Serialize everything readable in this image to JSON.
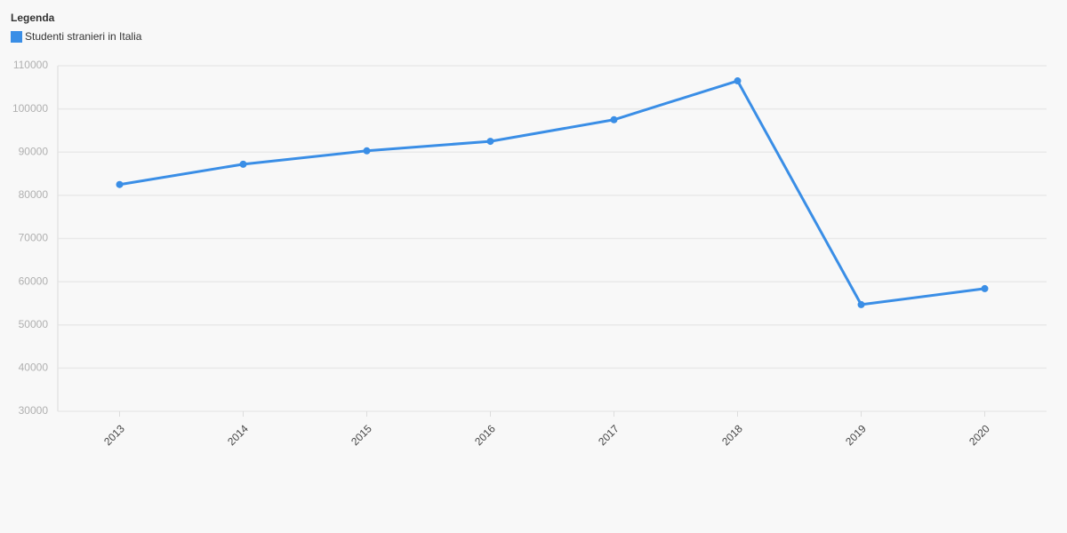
{
  "chart_data": {
    "type": "line",
    "legend_title": "Legenda",
    "categories": [
      "2013",
      "2014",
      "2015",
      "2016",
      "2017",
      "2018",
      "2019",
      "2020"
    ],
    "series": [
      {
        "name": "Studenti stranieri in Italia",
        "color": "#3a8ee6",
        "values": [
          82500,
          87200,
          90300,
          92500,
          97500,
          106500,
          54700,
          58400
        ]
      }
    ],
    "ylim": [
      30000,
      110000
    ],
    "yticks": [
      30000,
      40000,
      50000,
      60000,
      70000,
      80000,
      90000,
      100000,
      110000
    ],
    "grid": true,
    "legend": "top-left"
  }
}
